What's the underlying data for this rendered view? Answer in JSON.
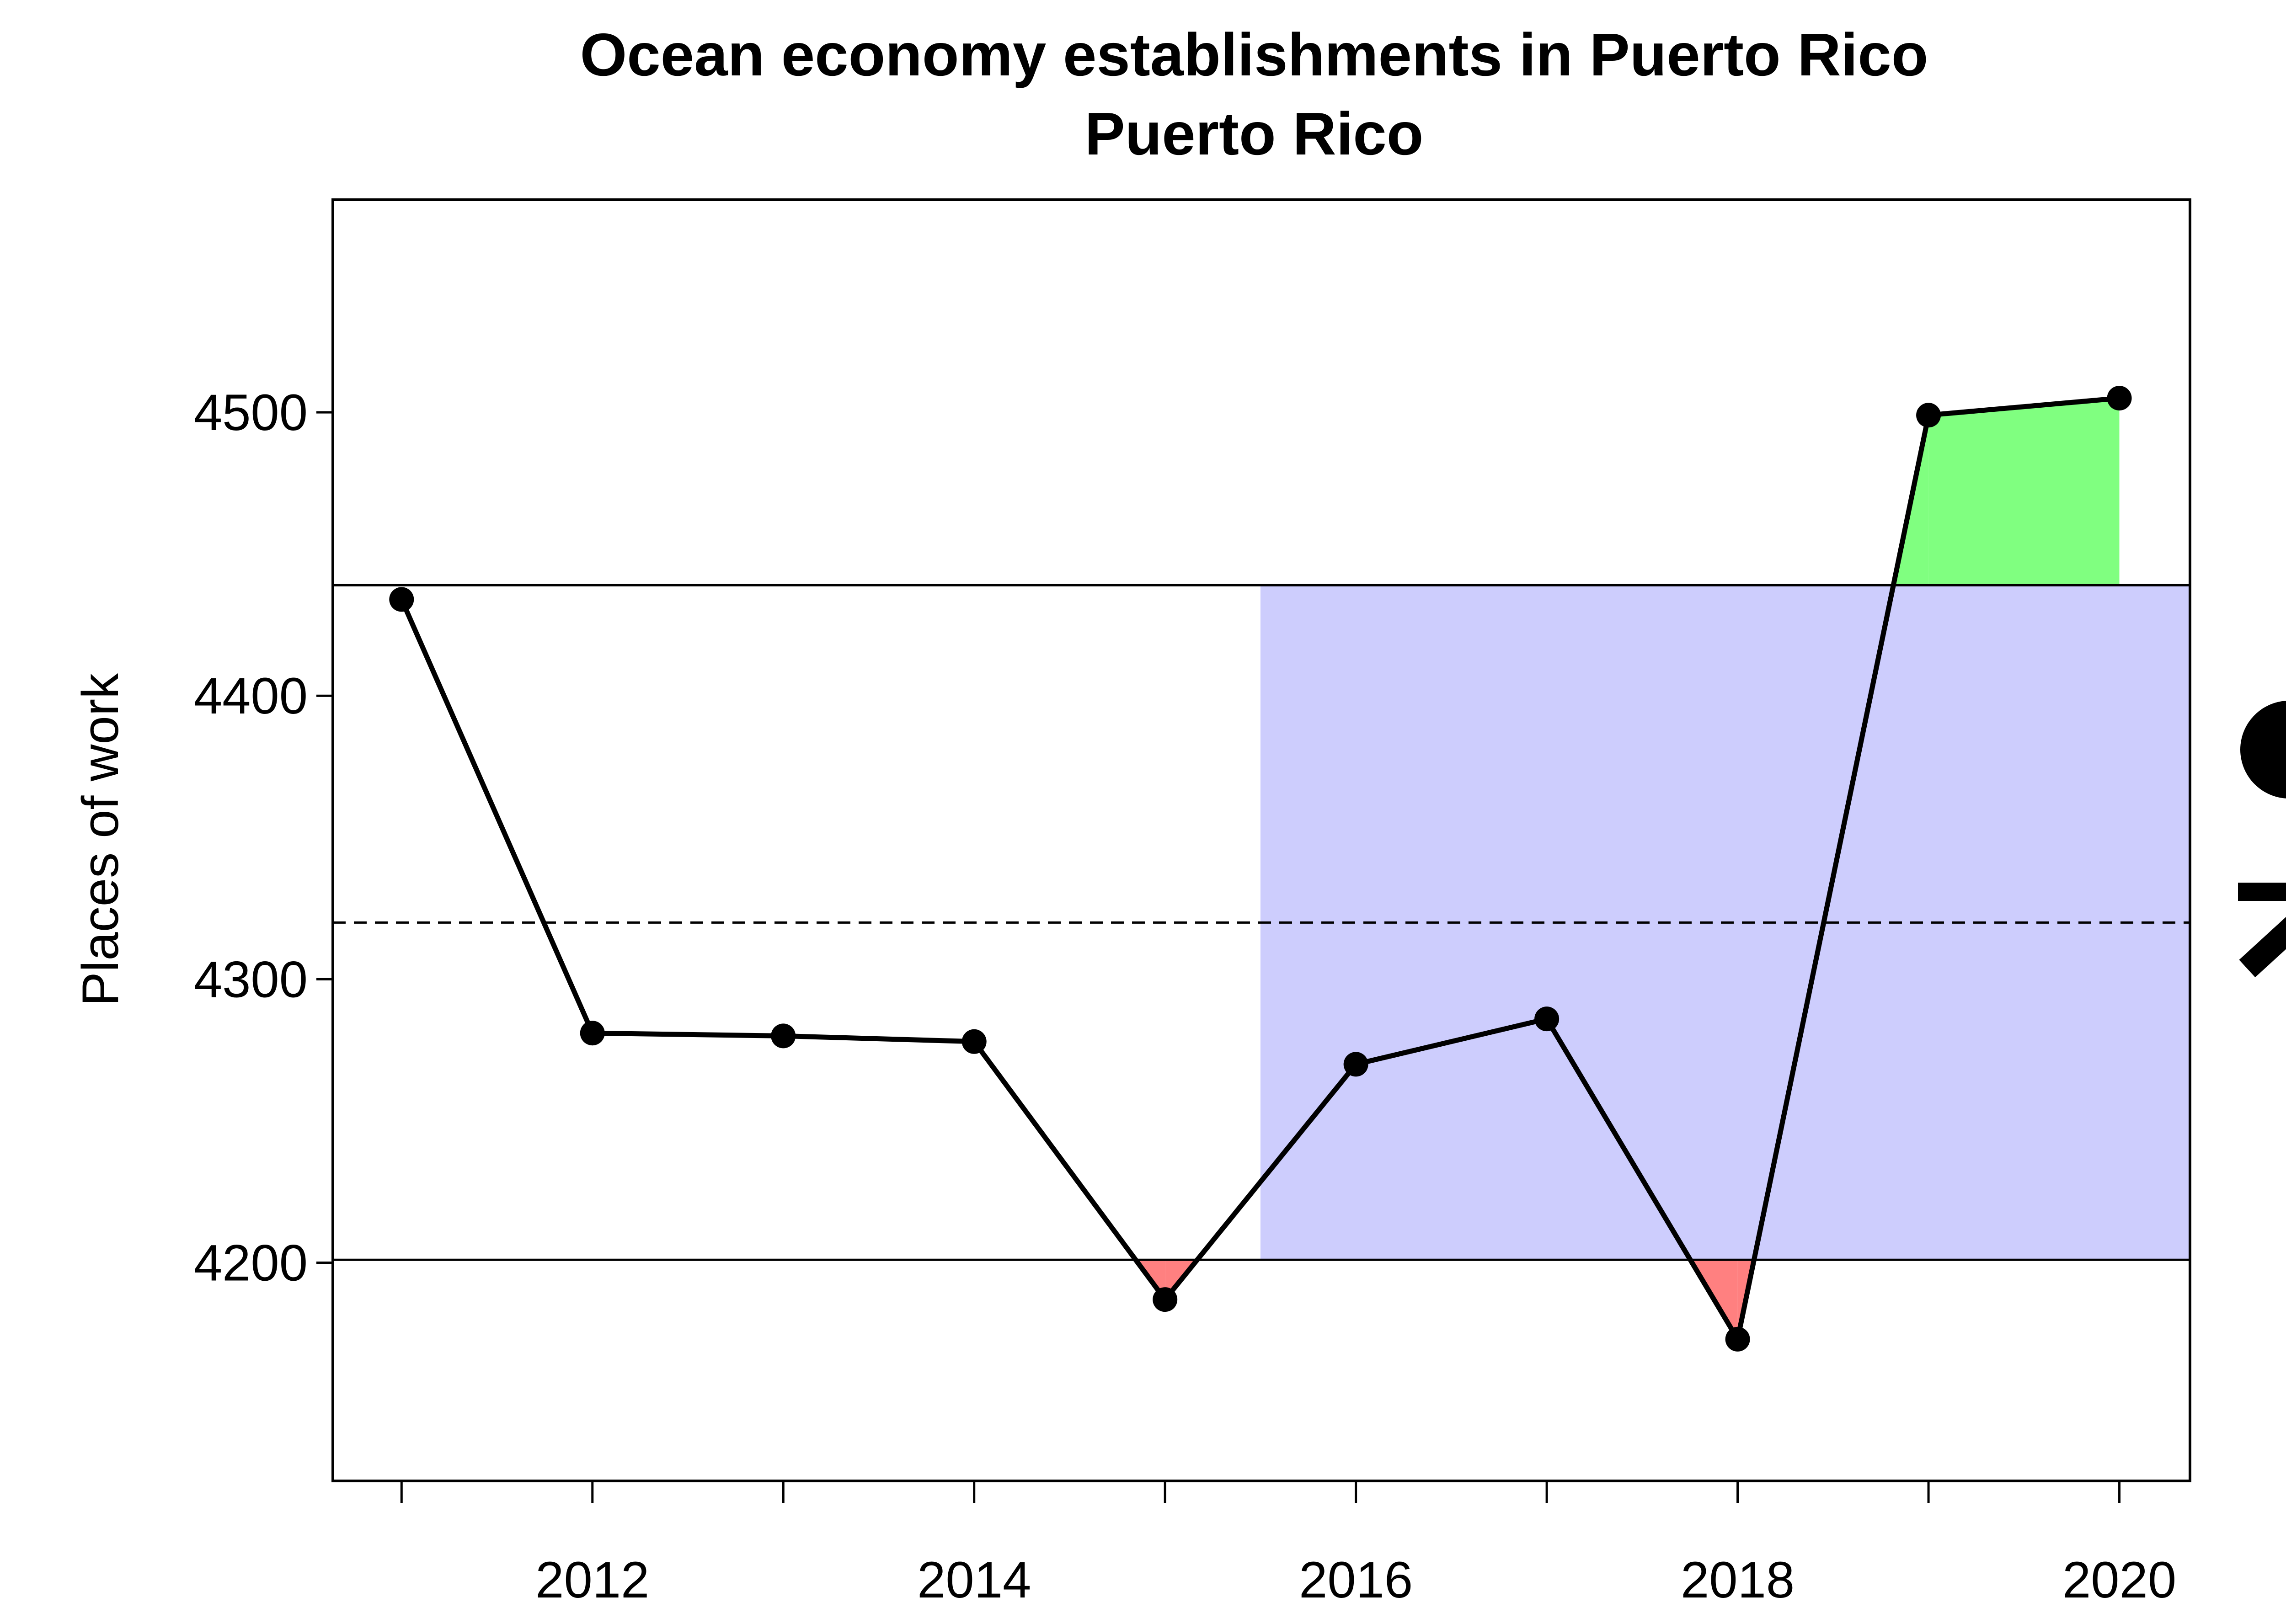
{
  "chart_data": {
    "type": "line",
    "title": "Ocean economy establishments in Puerto Rico",
    "subtitle": "Puerto Rico",
    "xlabel": "",
    "ylabel": "Places of work",
    "x": [
      2011,
      2012,
      2013,
      2014,
      2015,
      2016,
      2017,
      2018,
      2019,
      2020
    ],
    "series": [
      {
        "values": [
          4434,
          4281,
          4280,
          4278,
          4187,
          4270,
          4286,
          4173,
          4499,
          4505
        ]
      }
    ],
    "xlim": [
      2010.64,
      2020.37
    ],
    "ylim": [
      4123,
      4575
    ],
    "xticks": [
      2011,
      2012,
      2013,
      2014,
      2015,
      2016,
      2017,
      2018,
      2019,
      2020
    ],
    "xtick_labels": [
      "2012",
      "2014",
      "2016",
      "2018",
      "2020"
    ],
    "yticks": [
      4200,
      4300,
      4400,
      4500
    ],
    "mean": 4320,
    "upper_sd": 4439,
    "lower_sd": 4201,
    "recent_period_start": 2015.5,
    "grid": false,
    "legend": "none",
    "indicators": {
      "mean_comparison": "filled-circle",
      "trend": "arrow-up-right"
    },
    "colors": {
      "line": "#000000",
      "recent_period_shading": "#cdcdfd",
      "above_band": "#80ff80",
      "below_band": "#ff8080"
    }
  }
}
